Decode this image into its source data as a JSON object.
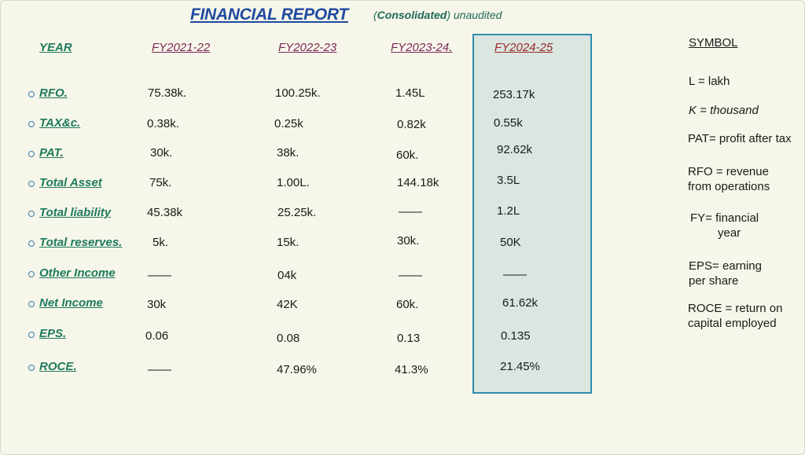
{
  "title": "FINANCIAL REPORT",
  "subtitle_bold": "Consolidated",
  "subtitle_rest": ") unaudited",
  "subtitle_open": "(",
  "headers": {
    "year": "YEAR",
    "fy1": "FY2021-22",
    "fy2": "FY2022-23",
    "fy3": "FY2023-24",
    "fy3_dot": ".",
    "fy4": "FY2024-25"
  },
  "rows": [
    {
      "label": "RFO.",
      "v": [
        "75.38k.",
        "100.25k.",
        "1.45L",
        "253.17k"
      ]
    },
    {
      "label": "TAX&c.",
      "v": [
        "0.38k.",
        "0.25k",
        "0.82k",
        "0.55k"
      ]
    },
    {
      "label": "PAT.",
      "v": [
        "30k.",
        "38k.",
        "60k.",
        "92.62k"
      ]
    },
    {
      "label": "Total Asset",
      "v": [
        "75k.",
        "1.00L.",
        "144.18k",
        "3.5L"
      ]
    },
    {
      "label": "Total liability",
      "v": [
        "45.38k",
        "25.25k.",
        "——",
        "1.2L"
      ]
    },
    {
      "label": "Total reserves.",
      "v": [
        "5k.",
        "15k.",
        "30k.",
        "50K"
      ]
    },
    {
      "label": "Other Income",
      "v": [
        "——",
        "04k",
        "——",
        "——"
      ]
    },
    {
      "label": "Net Income",
      "v": [
        "30k",
        "42K",
        "60k.",
        "61.62k"
      ]
    },
    {
      "label": "EPS.",
      "v": [
        "0.06",
        "0.08",
        "0.13",
        "0.135"
      ]
    },
    {
      "label": "ROCE.",
      "v": [
        "——",
        "47.96%",
        "41.3%",
        "21.45%"
      ]
    }
  ],
  "symbol": {
    "title": "SYMBOL",
    "items": [
      {
        "line1": "L = lakh",
        "line2": ""
      },
      {
        "line1": "K = thousand",
        "line2": ""
      },
      {
        "line1": "PAT= profit after tax",
        "line2": ""
      },
      {
        "line1": "RFO = revenue",
        "line2": "from operations"
      },
      {
        "line1": "FY= financial",
        "line2": "year"
      },
      {
        "line1": "EPS= earning",
        "line2": "per share"
      },
      {
        "line1": "ROCE = return on",
        "line2": "capital employed"
      }
    ]
  },
  "colors": {
    "title": "#1f4aa0",
    "label": "#1e7a5d",
    "fy_header": "#7a2a55",
    "highlight_fill": "#dbe6e0",
    "highlight_border": "#2e8cb0"
  }
}
